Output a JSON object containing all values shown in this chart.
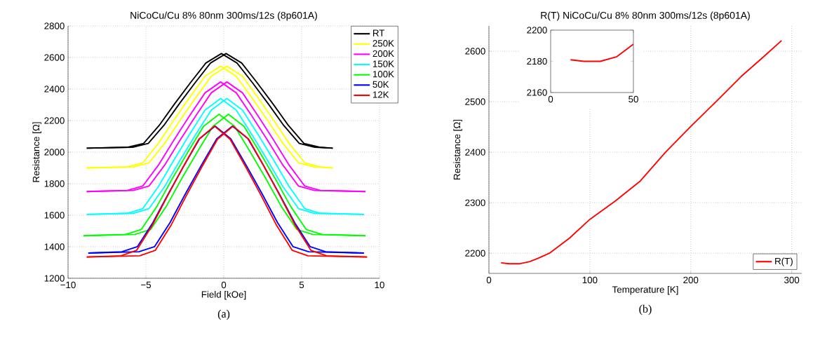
{
  "chart_data": [
    {
      "type": "line",
      "title": "NiCoCu/Cu 8% 80nm 300ms/12s (8p601A)",
      "xlabel": "Field [kOe]",
      "ylabel": "Resistance [Ω]",
      "xlim": [
        -10,
        10
      ],
      "ylim": [
        1200,
        2800
      ],
      "xticks": [
        {
          "value": -10,
          "label": "−10"
        },
        {
          "value": -5,
          "label": "−5"
        },
        0,
        5,
        10
      ],
      "yticks": [
        1200,
        1400,
        1600,
        1800,
        2000,
        2200,
        2400,
        2600,
        2800
      ],
      "grid": true,
      "legend": "top right",
      "annotations": [
        "(a)"
      ],
      "series": [
        {
          "name": "RT",
          "color": "#000000",
          "x": [
            -8.8,
            -5.85,
            -4.85,
            -3.85,
            -2.85,
            -1.85,
            -0.85,
            0.15,
            1.15,
            2.15,
            3.15,
            4.15,
            5.15,
            6.15,
            7.0
          ],
          "values": [
            2025,
            2031,
            2055,
            2169,
            2307,
            2439,
            2565,
            2625,
            2565,
            2439,
            2307,
            2169,
            2055,
            2031,
            2025
          ]
        },
        {
          "color": "#000000",
          "x": [
            -8.8,
            -6.15,
            -5.15,
            -4.15,
            -3.15,
            -2.15,
            -1.15,
            -0.15,
            0.85,
            1.85,
            2.85,
            3.85,
            4.85,
            5.85,
            7.0
          ],
          "values": [
            2025,
            2031,
            2055,
            2169,
            2307,
            2439,
            2565,
            2625,
            2565,
            2439,
            2307,
            2169,
            2055,
            2031,
            2025
          ]
        },
        {
          "name": "250K",
          "color": "#ffff00",
          "x": [
            -8.8,
            -5.8,
            -4.8,
            -3.8,
            -2.8,
            -1.8,
            -0.8,
            0.2,
            1.2,
            2.2,
            3.2,
            4.2,
            5.2,
            6.2,
            7.0
          ],
          "values": [
            1900,
            1906,
            1932,
            2055,
            2203,
            2345,
            2481,
            2545,
            2481,
            2345,
            2203,
            2055,
            1932,
            1906,
            1900
          ]
        },
        {
          "color": "#ffff00",
          "x": [
            -8.8,
            -6.2,
            -5.2,
            -4.2,
            -3.2,
            -2.2,
            -1.2,
            -0.2,
            0.8,
            1.8,
            2.8,
            3.8,
            4.8,
            5.8,
            7.0
          ],
          "values": [
            1900,
            1906,
            1932,
            2055,
            2203,
            2345,
            2481,
            2545,
            2481,
            2345,
            2203,
            2055,
            1932,
            1906,
            1900
          ]
        },
        {
          "name": "200K",
          "color": "#ff00ff",
          "x": [
            -8.8,
            -5.8,
            -4.8,
            -3.8,
            -2.8,
            -1.8,
            -0.8,
            0.2,
            1.2,
            2.2,
            3.2,
            4.2,
            5.2,
            6.2,
            9.1
          ],
          "values": [
            1750,
            1757,
            1785,
            1917,
            2077,
            2230,
            2376,
            2445,
            2376,
            2230,
            2077,
            1917,
            1785,
            1757,
            1750
          ]
        },
        {
          "color": "#ff00ff",
          "x": [
            -8.8,
            -6.2,
            -5.2,
            -4.2,
            -3.2,
            -2.2,
            -1.2,
            -0.2,
            0.8,
            1.8,
            2.8,
            3.8,
            4.8,
            5.8,
            9.1
          ],
          "values": [
            1750,
            1757,
            1785,
            1917,
            2077,
            2230,
            2376,
            2445,
            2376,
            2230,
            2077,
            1917,
            1785,
            1757,
            1750
          ]
        },
        {
          "name": "150K",
          "color": "#00ffff",
          "x": [
            -8.8,
            -5.8,
            -4.8,
            -3.8,
            -2.8,
            -1.8,
            -0.8,
            0.2,
            1.2,
            2.2,
            3.2,
            4.2,
            5.2,
            6.2,
            9.0
          ],
          "values": [
            1605,
            1612,
            1642,
            1781,
            1950,
            2112,
            2267,
            2340,
            2267,
            2112,
            1950,
            1781,
            1642,
            1612,
            1605
          ]
        },
        {
          "color": "#00ffff",
          "x": [
            -8.8,
            -6.2,
            -5.2,
            -4.2,
            -3.2,
            -2.2,
            -1.2,
            -0.2,
            0.8,
            1.8,
            2.8,
            3.8,
            4.8,
            5.8,
            9.0
          ],
          "values": [
            1605,
            1612,
            1642,
            1781,
            1950,
            2112,
            2267,
            2340,
            2267,
            2112,
            1950,
            1781,
            1642,
            1612,
            1605
          ]
        },
        {
          "name": "100K",
          "color": "#00ff00",
          "x": [
            -9.0,
            -5.7,
            -4.7,
            -3.7,
            -2.7,
            -1.7,
            -0.7,
            0.3,
            1.3,
            2.3,
            3.3,
            4.3,
            5.3,
            6.3,
            9.1
          ],
          "values": [
            1470,
            1478,
            1509,
            1655,
            1832,
            2001,
            2163,
            2240,
            2163,
            2001,
            1832,
            1655,
            1509,
            1478,
            1470
          ]
        },
        {
          "color": "#00ff00",
          "x": [
            -9.0,
            -6.3,
            -5.3,
            -4.3,
            -3.3,
            -2.3,
            -1.3,
            -0.3,
            0.7,
            1.7,
            2.7,
            3.7,
            4.7,
            5.7,
            9.1
          ],
          "values": [
            1470,
            1478,
            1509,
            1655,
            1832,
            2001,
            2163,
            2240,
            2163,
            2001,
            1832,
            1655,
            1509,
            1478,
            1470
          ]
        },
        {
          "name": "50K",
          "color": "#0000ff",
          "x": [
            -8.7,
            -5.45,
            -4.45,
            -3.45,
            -2.45,
            -1.45,
            -0.45,
            0.55,
            1.55,
            2.55,
            3.55,
            4.55,
            5.55,
            6.55,
            9.0
          ],
          "values": [
            1360,
            1368,
            1400,
            1553,
            1738,
            1915,
            2085,
            2165,
            2085,
            1915,
            1738,
            1553,
            1400,
            1368,
            1360
          ]
        },
        {
          "color": "#0000ff",
          "x": [
            -8.7,
            -6.55,
            -5.55,
            -4.55,
            -3.55,
            -2.55,
            -1.55,
            -0.55,
            0.45,
            1.45,
            2.45,
            3.45,
            4.45,
            5.45,
            9.0
          ],
          "values": [
            1360,
            1368,
            1400,
            1553,
            1738,
            1915,
            2085,
            2165,
            2085,
            1915,
            1738,
            1553,
            1400,
            1368,
            1360
          ]
        },
        {
          "name": "12K",
          "color": "#ff0000",
          "x": [
            -8.8,
            -5.4,
            -4.4,
            -3.4,
            -2.4,
            -1.4,
            -0.4,
            0.6,
            1.6,
            2.6,
            3.6,
            4.6,
            5.6,
            6.6,
            9.2
          ],
          "values": [
            1335,
            1343,
            1377,
            1534,
            1725,
            1908,
            2082,
            2165,
            2082,
            1908,
            1725,
            1534,
            1377,
            1343,
            1335
          ]
        },
        {
          "color": "#ff0000",
          "x": [
            -8.8,
            -6.6,
            -5.6,
            -4.6,
            -3.6,
            -2.6,
            -1.6,
            -0.6,
            0.4,
            1.4,
            2.4,
            3.4,
            4.4,
            5.4,
            9.2
          ],
          "values": [
            1335,
            1343,
            1377,
            1534,
            1725,
            1908,
            2082,
            2165,
            2082,
            1908,
            1725,
            1534,
            1377,
            1343,
            1335
          ]
        }
      ]
    },
    {
      "type": "line",
      "title": "R(T) NiCoCu/Cu 8% 80nm 300ms/12s (8p601A)",
      "xlabel": "Temperature [K]",
      "ylabel": "Resistance [Ω]",
      "xlim": [
        0,
        310
      ],
      "ylim": [
        2160,
        2650
      ],
      "xticks": [
        0,
        100,
        200,
        300
      ],
      "yticks": [
        2200,
        2300,
        2400,
        2500,
        2600
      ],
      "grid": true,
      "legend": "bottom right",
      "annotations": [
        "(b)"
      ],
      "series": [
        {
          "name": "R(T)",
          "color": "#ff0000",
          "x": [
            12,
            20,
            30,
            40,
            50,
            60,
            80,
            100,
            125,
            150,
            175,
            200,
            225,
            250,
            270,
            290
          ],
          "values": [
            2181,
            2179,
            2179,
            2183,
            2191,
            2200,
            2230,
            2267,
            2303,
            2343,
            2400,
            2451,
            2500,
            2550,
            2585,
            2621
          ]
        }
      ]
    },
    {
      "type": "line",
      "xlim": [
        0,
        50
      ],
      "ylim": [
        2160,
        2200
      ],
      "xticks": [
        0,
        50
      ],
      "yticks": [
        2160,
        2180,
        2200
      ],
      "series": [
        {
          "color": "#ff0000",
          "x": [
            12,
            20,
            30,
            40,
            50
          ],
          "values": [
            2181,
            2180,
            2180,
            2183,
            2191
          ]
        }
      ]
    }
  ]
}
